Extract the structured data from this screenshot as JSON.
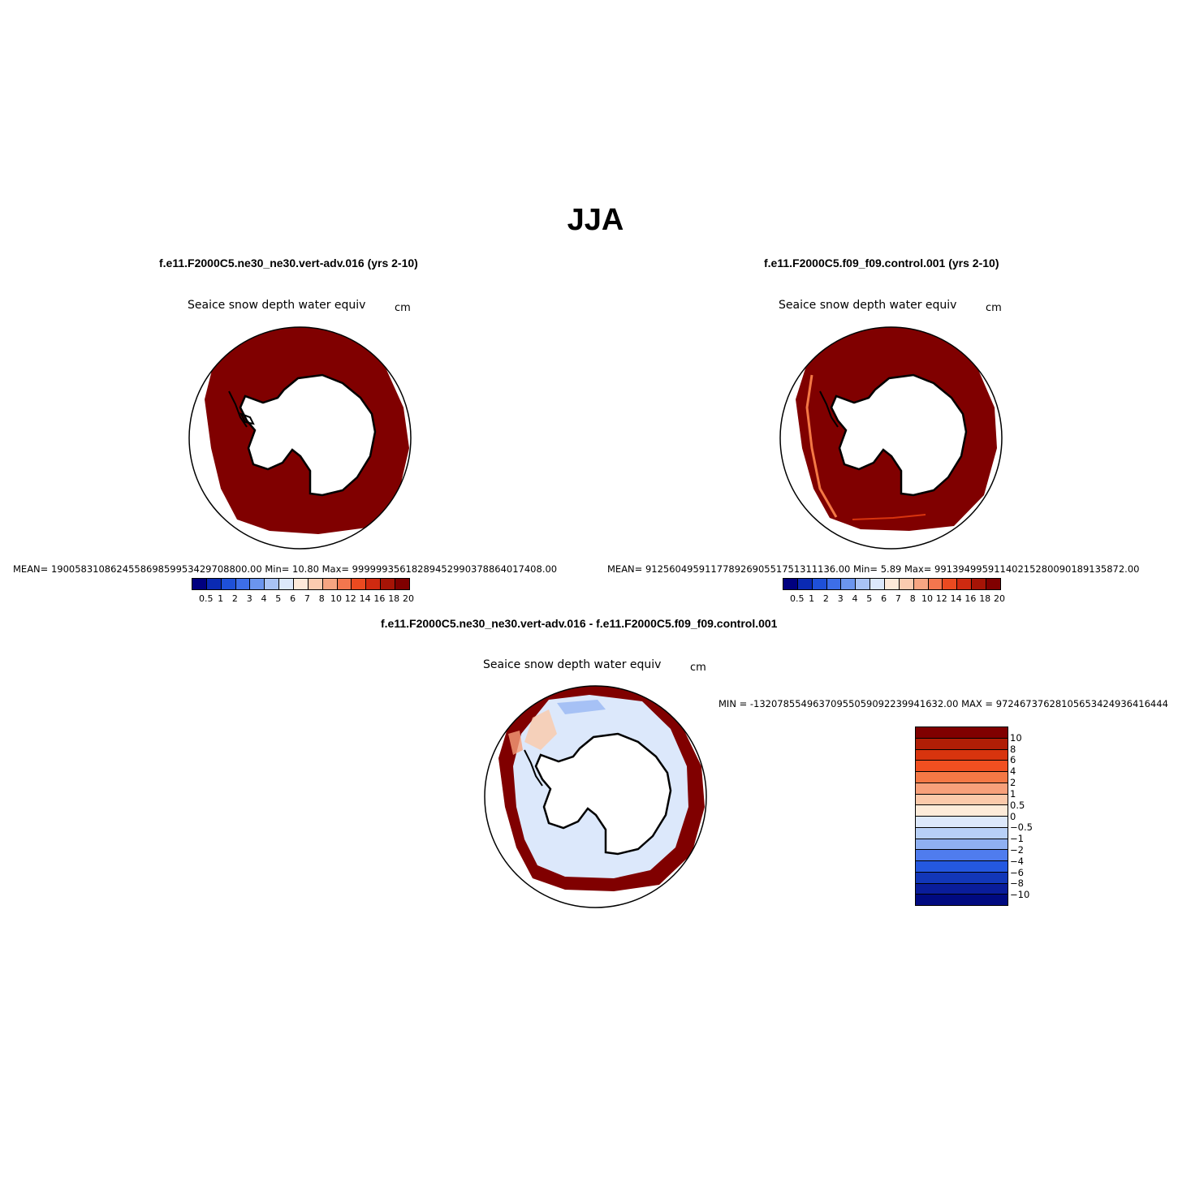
{
  "figure": {
    "title": "JJA"
  },
  "panels": [
    {
      "case_title": "f.e11.F2000C5.ne30_ne30.vert-adv.016 (yrs 2-10)",
      "variable": "Seaice snow depth water equiv",
      "units": "cm",
      "stats": "MEAN= 190058310862455869859953429708800.00   Min=    10.80    Max= 99999935618289452990378864017408.00"
    },
    {
      "case_title": "f.e11.F2000C5.f09_f09.control.001 (yrs 2-10)",
      "variable": "Seaice snow depth water equiv",
      "units": "cm",
      "stats": "MEAN= 91256049591177892690551751311136.00   Min=     5.89    Max= 99139499591140215280090189135872.00"
    },
    {
      "case_title": "f.e11.F2000C5.ne30_ne30.vert-adv.016 - f.e11.F2000C5.f09_f09.control.001",
      "variable": "Seaice snow depth water equiv",
      "units": "cm",
      "stats": "MIN = -132078554963709550590922399416​32.00  MAX = 97246737628105653424936416444"
    }
  ],
  "chart_data": [
    {
      "type": "heatmap",
      "title": "f.e11.F2000C5.ne30_ne30.vert-adv.016 (yrs 2-10)",
      "subtitle": "Seaice snow depth water equiv",
      "units": "cm",
      "projection": "south polar stereographic",
      "colorbar": {
        "orientation": "horizontal",
        "levels": [
          "0.5",
          "1",
          "2",
          "3",
          "4",
          "5",
          "6",
          "7",
          "8",
          "10",
          "12",
          "14",
          "16",
          "18",
          "20"
        ],
        "colors": [
          "#00007f",
          "#0a2ab3",
          "#1e50d8",
          "#3d6ee8",
          "#6b95ee",
          "#a9c3f5",
          "#dce8fb",
          "#fde9d9",
          "#fbcbb0",
          "#f7a582",
          "#f3764e",
          "#ea4a20",
          "#cf2a10",
          "#a61406",
          "#800000"
        ]
      },
      "mean": "190058310862455869859953429708800.00",
      "min": "10.80",
      "max": "99999935618289452990378864017408.00"
    },
    {
      "type": "heatmap",
      "title": "f.e11.F2000C5.f09_f09.control.001 (yrs 2-10)",
      "subtitle": "Seaice snow depth water equiv",
      "units": "cm",
      "projection": "south polar stereographic",
      "colorbar": {
        "orientation": "horizontal",
        "levels": [
          "0.5",
          "1",
          "2",
          "3",
          "4",
          "5",
          "6",
          "7",
          "8",
          "10",
          "12",
          "14",
          "16",
          "18",
          "20"
        ],
        "colors": [
          "#00007f",
          "#0a2ab3",
          "#1e50d8",
          "#3d6ee8",
          "#6b95ee",
          "#a9c3f5",
          "#dce8fb",
          "#fde9d9",
          "#fbcbb0",
          "#f7a582",
          "#f3764e",
          "#ea4a20",
          "#cf2a10",
          "#a61406",
          "#800000"
        ]
      },
      "mean": "91256049591177892690551751311136.00",
      "min": "5.89",
      "max": "99139499591140215280090189135872.00"
    },
    {
      "type": "heatmap",
      "title": "f.e11.F2000C5.ne30_ne30.vert-adv.016 - f.e11.F2000C5.f09_f09.control.001",
      "subtitle": "Seaice snow depth water equiv",
      "units": "cm",
      "projection": "south polar stereographic",
      "colorbar": {
        "orientation": "vertical",
        "levels": [
          "10",
          "8",
          "6",
          "4",
          "2",
          "1",
          "0.5",
          "0",
          "−0.5",
          "−1",
          "−2",
          "−4",
          "−6",
          "−8",
          "−10"
        ],
        "colors": [
          "#800000",
          "#b01e06",
          "#d8340e",
          "#f04f20",
          "#f47845",
          "#f7a07a",
          "#fbc9aa",
          "#fdebd9",
          "#dce8fb",
          "#b8d0f7",
          "#8fb0f2",
          "#4f7cee",
          "#2458e0",
          "#1237b8",
          "#0a1d9a",
          "#000a80"
        ]
      },
      "min": "-13207855496370955059092239941632.00",
      "max": "97246737628105653424936416444"
    }
  ],
  "colors": {
    "ice_dark_red": "#800000",
    "land": "#ffffff",
    "diff_light_blue": "#dce8fb"
  }
}
